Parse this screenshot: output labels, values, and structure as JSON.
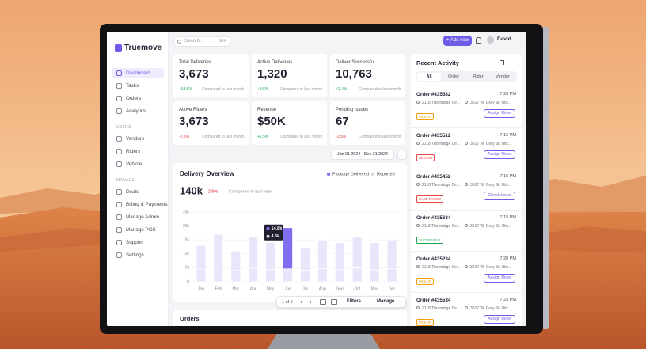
{
  "header": {
    "search": "Search...",
    "shortcut": "⌘K",
    "add_button": "+ Add new",
    "user": "David"
  },
  "sidebar": {
    "logo": "Truemove",
    "active": 0,
    "menu": [
      "Dashboard",
      "Tasks",
      "Orders",
      "Analytics"
    ],
    "groups": [
      {
        "title": "USERS",
        "items": [
          "Vendors",
          "Riders",
          "Vehicle"
        ]
      },
      {
        "title": "MANAGE",
        "items": [
          "Deals",
          "Billing & Payments",
          "Manage Admin",
          "Manage POS",
          "Support",
          "Settings"
        ]
      }
    ]
  },
  "stats": [
    {
      "label": "Total Deliveries",
      "value": "3,673",
      "change": "+18.5%",
      "color": "#16a34a",
      "note": "Compared to last month"
    },
    {
      "label": "Active Deliveries",
      "value": "1,320",
      "change": "+8.5%",
      "color": "#16a34a",
      "note": "Compared to last month"
    },
    {
      "label": "Deliver Successful",
      "value": "10,763",
      "change": "+2.4%",
      "color": "#16a34a",
      "note": "Compared to last month"
    },
    {
      "label": "Active Riders",
      "value": "3,673",
      "change": "-2.5%",
      "color": "#dc2626",
      "note": "Compared to last month"
    },
    {
      "label": "Revenue",
      "value": "$50K",
      "change": "+1.5%",
      "color": "#16a34a",
      "note": "Compared to last month"
    },
    {
      "label": "Pending Issues",
      "value": "67",
      "change": "-1.5%",
      "color": "#dc2626",
      "note": "Compared to last month"
    }
  ],
  "date_range": "Jan 01 2024 - Dec 31 2024",
  "overview": {
    "total": "140k",
    "change": "-2.9%",
    "change_color": "#dc2626",
    "note": "Compared to last year"
  },
  "chart_data": {
    "type": "bar",
    "title": "Delivery Overview",
    "stacked": true,
    "grid": true,
    "highlight": 5,
    "inactive_color": "#e9e6fb",
    "categories": [
      "Jan",
      "Feb",
      "Mar",
      "Apr",
      "May",
      "Jun",
      "Jul",
      "Aug",
      "Sep",
      "Oct",
      "Nov",
      "Dec"
    ],
    "series": [
      {
        "name": "Package Delivered",
        "color": "#7f6ff0",
        "values": [
          8500,
          11800,
          7000,
          11200,
          9600,
          14800,
          7900,
          10300,
          9700,
          11000,
          9800,
          10400
        ],
        "value_labels": [
          null,
          null,
          null,
          null,
          null,
          "14.8k",
          null,
          null,
          null,
          null,
          null,
          null
        ]
      },
      {
        "name": "Reported",
        "color": "#d9d9e3",
        "values": [
          4500,
          5200,
          4000,
          4800,
          4400,
          4600,
          4100,
          4700,
          4300,
          5000,
          4200,
          4600
        ],
        "value_labels": [
          null,
          null,
          null,
          null,
          null,
          "4.6k",
          null,
          null,
          null,
          null,
          null,
          null
        ]
      }
    ],
    "ylim": [
      0,
      25000
    ],
    "yticks": [
      0,
      {
        "value": 5000,
        "label": "5k"
      },
      {
        "value": 10000,
        "label": "10k"
      },
      {
        "value": 15000,
        "label": "15k"
      },
      {
        "value": 20000,
        "label": "20k"
      },
      {
        "value": 25000,
        "label": "25k"
      }
    ]
  },
  "toolbar": {
    "pages": "1 of 5",
    "filters": "Filters",
    "manage": "Manage"
  },
  "orders_title": "Orders",
  "activity": {
    "title": "Recent Activity",
    "tabs": [
      "All",
      "Order",
      "Rider",
      "Vendor"
    ],
    "items": [
      {
        "order": "Order #435532",
        "time": "7:23 PM",
        "from": "2118 Thornridge Cir...",
        "to": "3517 W. Gray St. Utic...",
        "status": "PICKUP",
        "status_color": "#f59e0b",
        "action": "Assign Rider"
      },
      {
        "order": "Order #435512",
        "time": "7:16 PM",
        "from": "2118 Thornridge Cir...",
        "to": "3517 W. Gray St. Utic...",
        "status": "RETURN",
        "status_color": "#ef4444",
        "action": "Assign Rider"
      },
      {
        "order": "Order #435452",
        "time": "7:15 PM",
        "from": "2118 Thornridge Cir...",
        "to": "3517 W. Gray St. Utic...",
        "status": "CASE RAISED",
        "status_color": "#ef4444",
        "action": "Check Issue"
      },
      {
        "order": "Order #435634",
        "time": "7:15 PM",
        "from": "2118 Thornridge Cir...",
        "to": "3517 W. Gray St. Utic...",
        "status": "SUCCESSFUL",
        "status_color": "#16a34a"
      },
      {
        "order": "Order #435234",
        "time": "7:20 PM",
        "from": "2118 Thornridge Cir...",
        "to": "3517 W. Gray St. Utic...",
        "status": "PICKUP",
        "status_color": "#f59e0b",
        "action": "Assign Rider"
      },
      {
        "order": "Order #435534",
        "time": "7:23 PM",
        "from": "2118 Thornridge Cir...",
        "to": "3517 W. Gray St. Utic...",
        "status": "PICKUP",
        "status_color": "#f59e0b",
        "action": "Assign Rider"
      }
    ]
  }
}
